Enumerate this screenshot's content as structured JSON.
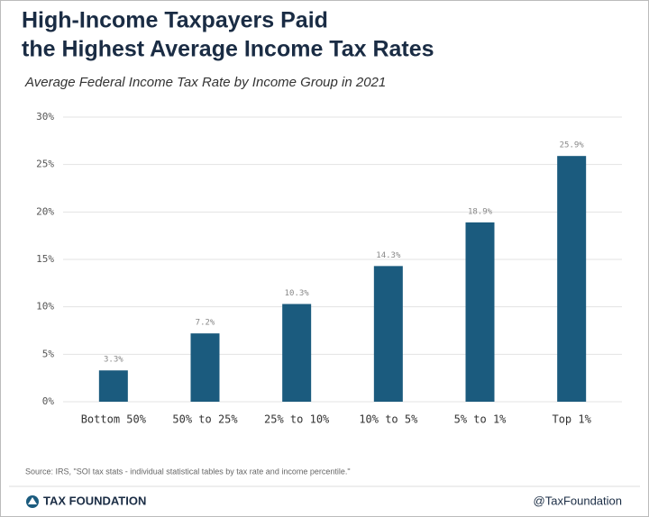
{
  "chart_data": {
    "type": "bar",
    "title": [
      "High-Income Taxpayers Paid",
      "the Highest Average Income Tax Rates"
    ],
    "subtitle": "Average Federal Income Tax Rate by Income Group in 2021",
    "categories": [
      "Bottom 50%",
      "50% to 25%",
      "25% to 10%",
      "10% to 5%",
      "5% to 1%",
      "Top 1%"
    ],
    "values": [
      3.3,
      7.2,
      10.3,
      14.3,
      18.9,
      25.9
    ],
    "value_labels": [
      "3.3%",
      "7.2%",
      "10.3%",
      "14.3%",
      "18.9%",
      "25.9%"
    ],
    "color": "#1b5b7e",
    "ylim": [
      0,
      30
    ],
    "yticks": [
      {
        "value": 0,
        "label": "0%"
      },
      {
        "value": 5,
        "label": "5%"
      },
      {
        "value": 10,
        "label": "10%"
      },
      {
        "value": 15,
        "label": "15%"
      },
      {
        "value": 20,
        "label": "20%"
      },
      {
        "value": 25,
        "label": "25%"
      },
      {
        "value": 30,
        "label": "30%"
      }
    ],
    "grid": true,
    "source": "Source: IRS, \"SOI tax stats - individual statistical tables by tax rate and income percentile.\"",
    "footer_left": "TAX FOUNDATION",
    "footer_right": "@TaxFoundation"
  }
}
